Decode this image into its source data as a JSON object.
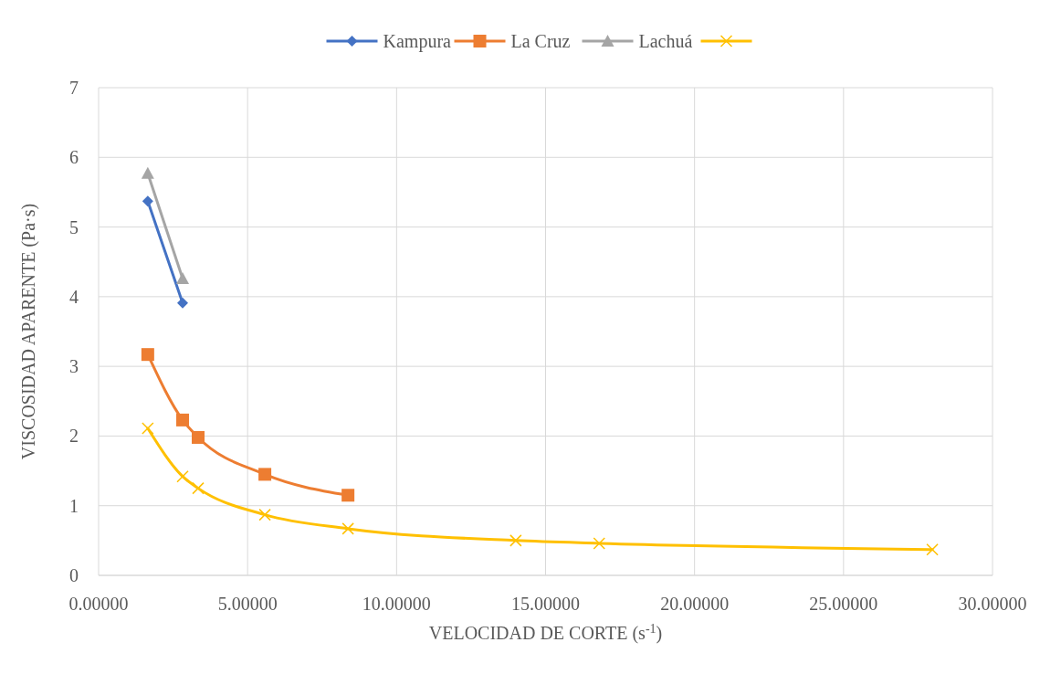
{
  "chart_data": {
    "type": "line",
    "xlabel": "VELOCIDAD DE CORTE (s$^{-1}$)",
    "ylabel": "VISCOSIDAD APARENTE (Pa·s)",
    "xlim": [
      0,
      30
    ],
    "xticks": [
      {
        "value": 0,
        "label": "0.00000"
      },
      {
        "value": 5,
        "label": "5.00000"
      },
      {
        "value": 10,
        "label": "10.00000"
      },
      {
        "value": 15,
        "label": "15.00000"
      },
      {
        "value": 20,
        "label": "20.00000"
      },
      {
        "value": 25,
        "label": "25.00000"
      },
      {
        "value": 30,
        "label": "30.00000"
      }
    ],
    "ylim": [
      0,
      7
    ],
    "yticks": [
      0,
      1,
      2,
      3,
      4,
      5,
      6,
      7
    ],
    "grid": true,
    "legend": "top",
    "series": [
      {
        "name": "Kampura",
        "color": "#4472c4",
        "marker": "diamond",
        "x": [
          1.65,
          2.82
        ],
        "values": [
          5.37,
          3.91
        ]
      },
      {
        "name": "La Cruz",
        "color": "#ed7d31",
        "marker": "square",
        "x": [
          1.65,
          2.82,
          3.34,
          5.58,
          8.37
        ],
        "values": [
          3.17,
          2.23,
          1.98,
          1.45,
          1.15
        ]
      },
      {
        "name": "Lachuá",
        "color": "#a5a5a5",
        "marker": "triangle",
        "x": [
          1.65,
          2.82
        ],
        "values": [
          5.77,
          4.26
        ]
      },
      {
        "color": "#ffc000",
        "marker": "cross",
        "x": [
          1.65,
          2.82,
          3.34,
          5.58,
          8.37,
          14.0,
          16.8,
          27.98
        ],
        "values": [
          2.11,
          1.42,
          1.25,
          0.87,
          0.67,
          0.5,
          0.46,
          0.37
        ]
      }
    ]
  }
}
